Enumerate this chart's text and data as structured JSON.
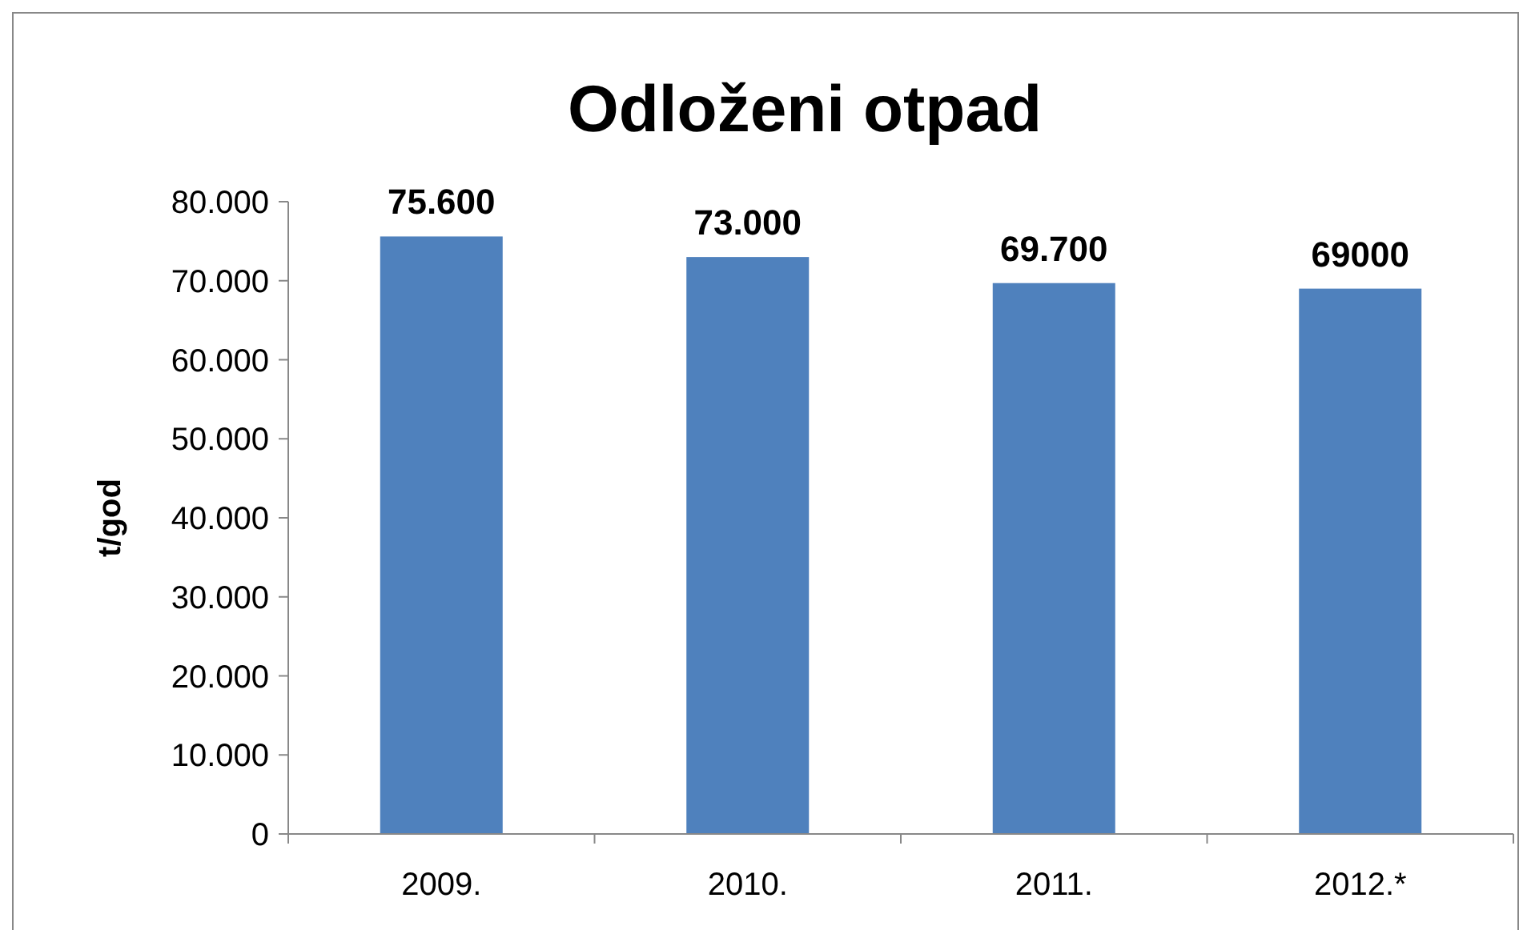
{
  "chart_data": {
    "type": "bar",
    "title": "Odloženi otpad",
    "ylabel": "t/god",
    "categories": [
      "2009.",
      "2010.",
      "2011.",
      "2012.*"
    ],
    "values": [
      75600,
      73000,
      69700,
      69000
    ],
    "value_labels": [
      "75.600",
      "73.000",
      "69.700",
      "69000"
    ],
    "color": "#4f81bd",
    "ylim": [
      0,
      80000
    ],
    "yticks": [
      {
        "value": 0,
        "label": "0"
      },
      {
        "value": 10000,
        "label": "10.000"
      },
      {
        "value": 20000,
        "label": "20.000"
      },
      {
        "value": 30000,
        "label": "30.000"
      },
      {
        "value": 40000,
        "label": "40.000"
      },
      {
        "value": 50000,
        "label": "50.000"
      },
      {
        "value": 60000,
        "label": "60.000"
      },
      {
        "value": 70000,
        "label": "70.000"
      },
      {
        "value": 80000,
        "label": "80.000"
      }
    ],
    "grid": false
  }
}
